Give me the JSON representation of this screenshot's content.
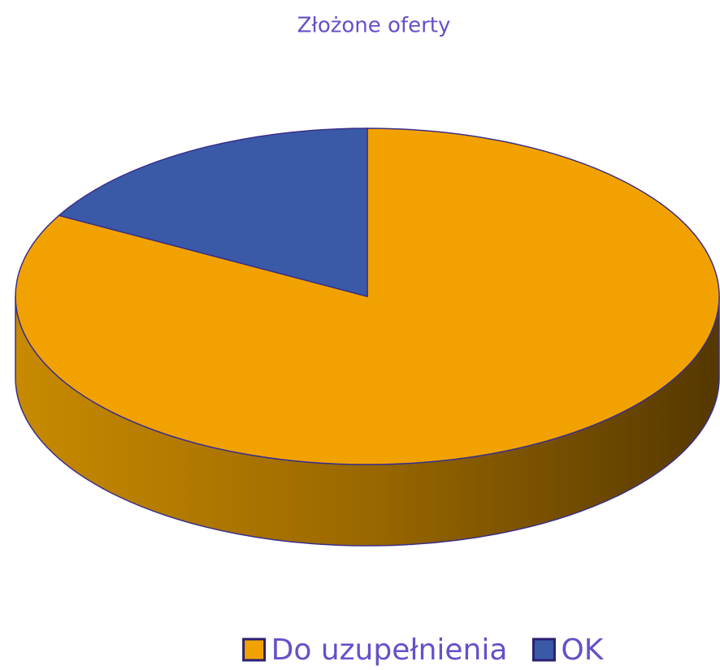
{
  "chart_data": {
    "type": "pie",
    "title": "Złożone oferty",
    "categories": [
      "Do uzupełnienia",
      "OK"
    ],
    "values": [
      83,
      17
    ],
    "colors": [
      "#f2a200",
      "#3a5aa8"
    ],
    "legend": "bottom"
  }
}
